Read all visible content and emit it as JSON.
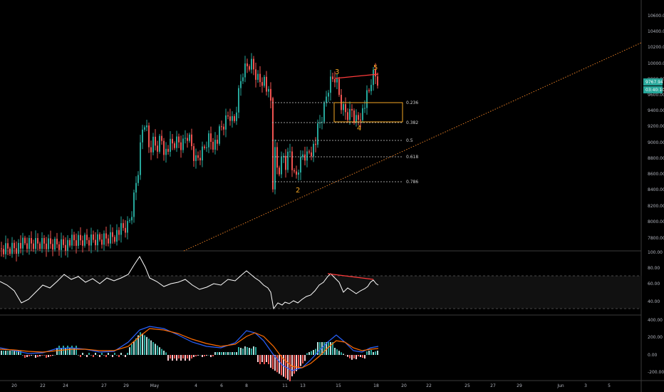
{
  "colors": {
    "background": "#000000",
    "up": "#26a69a",
    "down": "#ef5350",
    "grid": "#2a2a2a",
    "axis_text": "#b2b5be",
    "wave_label": "#f5a623",
    "fib_line": "#d0d0d0",
    "trendline": "#e07b24",
    "divergence": "#ff3b3b",
    "box": "#f5a623",
    "rsi_line": "#ffffff",
    "macd_line": "#2962ff",
    "signal_line": "#ff6d00",
    "price_badge": "#26a69a"
  },
  "price_axis": {
    "ticks": [
      "10600.00",
      "10400.00",
      "10200.00",
      "10000.00",
      "9800.00",
      "9600.00",
      "9400.00",
      "9200.00",
      "9000.00",
      "8800.00",
      "8600.00",
      "8400.00",
      "8200.00",
      "8000.00",
      "7800.00"
    ],
    "last_price": "9767.94",
    "countdown": "03:40:10"
  },
  "rsi_axis": {
    "ticks": [
      "100.00",
      "80.00",
      "60.00",
      "40.00"
    ]
  },
  "macd_axis": {
    "ticks": [
      "400.00",
      "200.00",
      "0.00",
      "-200.00"
    ]
  },
  "time_axis": {
    "ticks": [
      "20",
      "22",
      "24",
      "27",
      "29",
      "May",
      "4",
      "6",
      "8",
      "11",
      "13",
      "15",
      "18",
      "20",
      "22",
      "25",
      "27",
      "29",
      "Jun",
      "3",
      "5"
    ]
  },
  "fib_levels": [
    "0.236",
    "0.382",
    "0.5",
    "0.618",
    "0.786"
  ],
  "wave_labels": [
    "2",
    "3",
    "4",
    "5"
  ],
  "chart_data": {
    "type": "candlestick",
    "title": "",
    "ylim": [
      7600,
      10800
    ],
    "wave_points": {
      "2": 8450,
      "3": 9920,
      "4": 9280,
      "5": 9930
    },
    "fib_prices": {
      "0.236": 9500,
      "0.382": 9220,
      "0.5": 9000,
      "0.618": 8820,
      "0.786": 8500
    },
    "consolidation_box": {
      "top": 9500,
      "bottom": 9250
    },
    "rsi": {
      "ylim": [
        30,
        100
      ],
      "upper_band": 70,
      "lower_band": 30
    },
    "macd": {
      "ylim": [
        -250,
        450
      ]
    }
  }
}
